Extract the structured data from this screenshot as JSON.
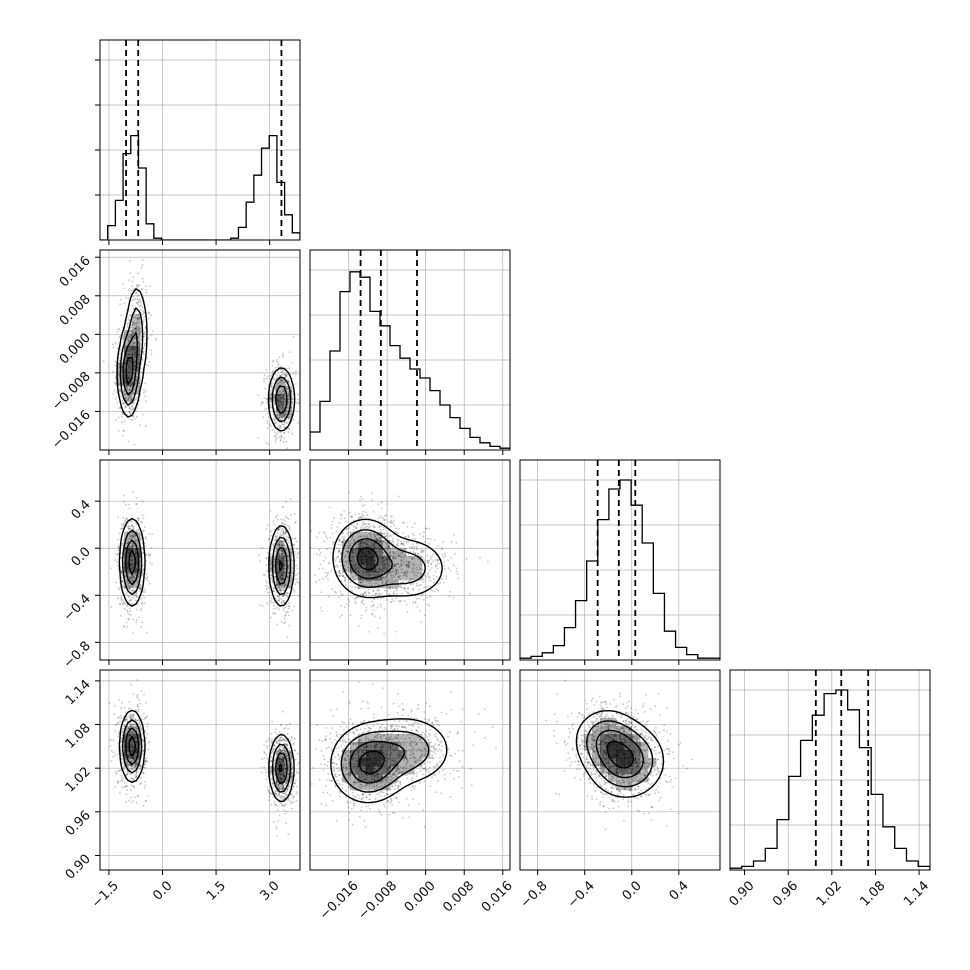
{
  "chart_data": {
    "type": "corner",
    "parameters": [
      {
        "range": [
          -1.75,
          3.85
        ],
        "ticks": [
          -1.5,
          0.0,
          1.5,
          3.0
        ],
        "tick_labels": [
          "−1.5",
          "0.0",
          "1.5",
          "3.0"
        ],
        "quantiles": [
          -1.02,
          -0.68,
          3.33
        ]
      },
      {
        "range": [
          -0.024,
          0.0175
        ],
        "ticks": [
          -0.016,
          -0.008,
          0.0,
          0.008,
          0.016
        ],
        "tick_labels": [
          "−0.016",
          "−0.008",
          "0.000",
          "0.008",
          "0.016"
        ],
        "quantiles": [
          -0.0135,
          -0.0093,
          -0.0018
        ]
      },
      {
        "range": [
          -0.95,
          0.75
        ],
        "ticks": [
          -0.8,
          -0.4,
          0.0,
          0.4
        ],
        "tick_labels": [
          "−0.8",
          "−0.4",
          "0.0",
          "0.4"
        ],
        "quantiles": [
          -0.29,
          -0.11,
          0.03
        ]
      },
      {
        "range": [
          0.88,
          1.155
        ],
        "ticks": [
          0.9,
          0.96,
          1.02,
          1.08,
          1.14
        ],
        "tick_labels": [
          "0.90",
          "0.96",
          "1.02",
          "1.08",
          "1.14"
        ],
        "quantiles": [
          0.998,
          1.033,
          1.07
        ]
      }
    ],
    "histograms": [
      [
        0,
        0.08,
        0.22,
        0.48,
        0.58,
        0.4,
        0.09,
        0.01,
        0,
        0,
        0,
        0,
        0,
        0,
        0,
        0,
        0,
        0.01,
        0.07,
        0.21,
        0.36,
        0.51,
        0.58,
        0.32,
        0.14,
        0.04
      ],
      [
        0.1,
        0.27,
        0.55,
        0.88,
        0.99,
        0.96,
        0.77,
        0.69,
        0.58,
        0.51,
        0.45,
        0.4,
        0.33,
        0.25,
        0.18,
        0.12,
        0.07,
        0.04,
        0.02,
        0.01
      ],
      [
        0.01,
        0.02,
        0.04,
        0.08,
        0.18,
        0.33,
        0.55,
        0.78,
        0.95,
        1.0,
        0.86,
        0.65,
        0.37,
        0.16,
        0.07,
        0.03,
        0.01,
        0.01
      ],
      [
        0.01,
        0.02,
        0.05,
        0.12,
        0.28,
        0.52,
        0.72,
        0.86,
        0.98,
        1.0,
        0.89,
        0.68,
        0.42,
        0.24,
        0.12,
        0.05,
        0.02
      ]
    ],
    "density_blobs": [
      {
        "x": 0,
        "y": 1,
        "cx": -0.95,
        "cy": -0.008,
        "sx": 0.15,
        "sy": 0.0045,
        "w": 1.0
      },
      {
        "x": 0,
        "y": 1,
        "cx": -0.72,
        "cy": 0.0,
        "sx": 0.16,
        "sy": 0.0055,
        "w": 0.55
      },
      {
        "x": 0,
        "y": 1,
        "cx": 3.33,
        "cy": -0.0135,
        "sx": 0.18,
        "sy": 0.0033,
        "w": 0.9
      },
      {
        "x": 0,
        "y": 2,
        "cx": -0.85,
        "cy": -0.12,
        "sx": 0.17,
        "sy": 0.18,
        "w": 1.0
      },
      {
        "x": 0,
        "y": 2,
        "cx": 3.33,
        "cy": -0.15,
        "sx": 0.17,
        "sy": 0.17,
        "w": 0.9
      },
      {
        "x": 0,
        "y": 3,
        "cx": -0.85,
        "cy": 1.05,
        "sx": 0.17,
        "sy": 0.024,
        "w": 1.0
      },
      {
        "x": 0,
        "y": 3,
        "cx": 3.33,
        "cy": 1.02,
        "sx": 0.17,
        "sy": 0.023,
        "w": 0.9
      },
      {
        "x": 1,
        "y": 2,
        "cx": -0.0125,
        "cy": -0.08,
        "sx": 0.0033,
        "sy": 0.16,
        "w": 1.0
      },
      {
        "x": 1,
        "y": 2,
        "cx": -0.004,
        "cy": -0.17,
        "sx": 0.0045,
        "sy": 0.14,
        "w": 0.5
      },
      {
        "x": 1,
        "y": 3,
        "cx": -0.012,
        "cy": 1.025,
        "sx": 0.0038,
        "sy": 0.026,
        "w": 1.0
      },
      {
        "x": 1,
        "y": 3,
        "cx": -0.004,
        "cy": 1.045,
        "sx": 0.005,
        "sy": 0.025,
        "w": 0.55
      },
      {
        "x": 2,
        "y": 3,
        "cx": -0.05,
        "cy": 1.03,
        "sx": 0.16,
        "sy": 0.025,
        "w": 1.0
      },
      {
        "x": 2,
        "y": 3,
        "cx": -0.22,
        "cy": 1.06,
        "sx": 0.14,
        "sy": 0.022,
        "w": 0.6
      }
    ],
    "contour_levels": [
      0.12,
      0.32,
      0.58,
      0.85
    ],
    "grid": true,
    "colors": {
      "line": "#000000",
      "density": "#000000",
      "background": "#ffffff",
      "grid": "#b0b0b0"
    }
  }
}
